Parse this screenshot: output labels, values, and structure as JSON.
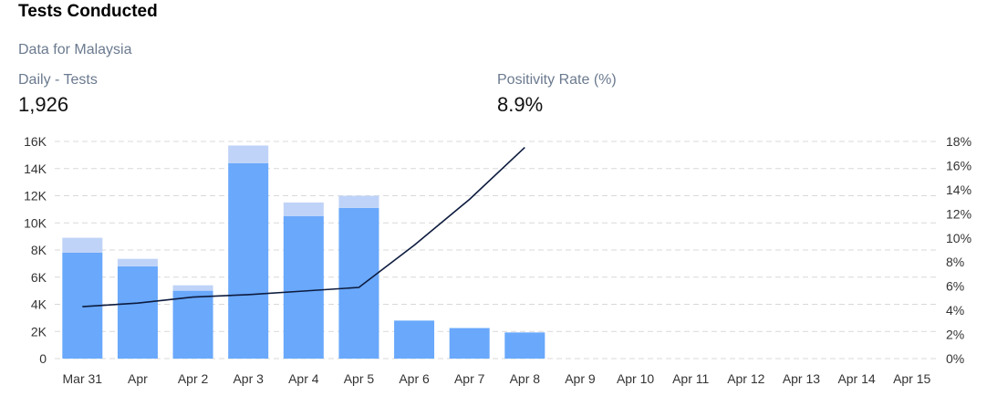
{
  "header": {
    "title": "Tests Conducted",
    "subtitle": "Data for Malaysia"
  },
  "kpis": [
    {
      "label": "Daily - Tests",
      "value": "1,926"
    },
    {
      "label": "Positivity Rate (%)",
      "value": "8.9%"
    }
  ],
  "colors": {
    "bar_main": "#69a8fb",
    "bar_top": "#bfd3f8",
    "line": "#0d1b3e",
    "grid": "#d9d9d9"
  },
  "chart_data": {
    "type": "bar",
    "categories": [
      "Mar 31",
      "Apr",
      "Apr 2",
      "Apr 3",
      "Apr 4",
      "Apr 5",
      "Apr 6",
      "Apr 7",
      "Apr 8",
      "Apr 9",
      "Apr 10",
      "Apr 11",
      "Apr 12",
      "Apr 13",
      "Apr 14",
      "Apr 15"
    ],
    "series": [
      {
        "type": "bar",
        "stack": "tests",
        "values": [
          7800,
          6800,
          5000,
          14400,
          10500,
          11100,
          2800,
          2250,
          1926,
          null,
          null,
          null,
          null,
          null,
          null,
          null
        ]
      },
      {
        "type": "bar",
        "stack": "tests",
        "values": [
          1100,
          550,
          400,
          1300,
          1000,
          900,
          0,
          0,
          0,
          null,
          null,
          null,
          null,
          null,
          null,
          null
        ]
      },
      {
        "type": "line",
        "axis": "right",
        "values": [
          4.3,
          4.6,
          5.1,
          5.3,
          5.6,
          5.9,
          9.4,
          13.2,
          17.5,
          null,
          null,
          null,
          null,
          null,
          null,
          null
        ]
      }
    ],
    "y_left": {
      "min": 0,
      "max": 16000,
      "ticks": [
        "0",
        "2K",
        "4K",
        "6K",
        "8K",
        "10K",
        "12K",
        "14K",
        "16K"
      ]
    },
    "y_right": {
      "min": 0,
      "max": 18,
      "ticks": [
        "0%",
        "2%",
        "4%",
        "6%",
        "8%",
        "10%",
        "12%",
        "14%",
        "16%",
        "18%"
      ]
    },
    "grid": true,
    "legend": false
  }
}
